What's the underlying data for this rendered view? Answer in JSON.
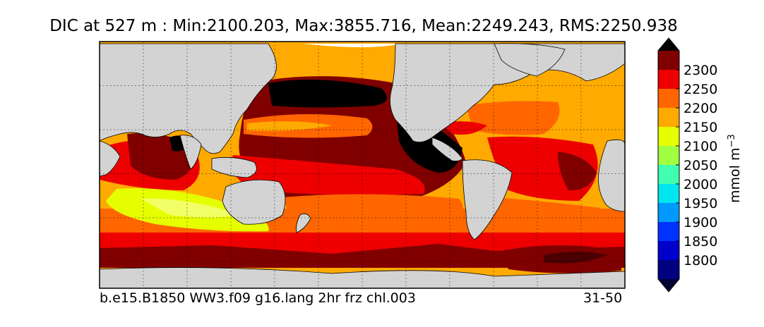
{
  "title": "DIC at 527 m : Min:2100.203, Max:3855.716, Mean:2249.243, RMS:2250.938",
  "footer": {
    "case_name": "b.e15.B1850 WW3.f09 g16.lang 2hr frz chl.003",
    "years": "31-50"
  },
  "colorbar": {
    "unit_prefix": "mmol m",
    "unit_exponent": "−3",
    "levels": [
      1800,
      1850,
      1900,
      1950,
      2000,
      2050,
      2100,
      2150,
      2200,
      2250,
      2300
    ],
    "colors": [
      "#000080",
      "#0000cd",
      "#0033ff",
      "#0099ff",
      "#00e5ee",
      "#40ffb0",
      "#a0ff40",
      "#e6ff00",
      "#ffaa00",
      "#ff6600",
      "#ee0000",
      "#800000"
    ],
    "under_color": "#000033",
    "over_color": "#000000"
  },
  "chart_data": {
    "type": "heatmap",
    "title": "DIC at 527 m : Min:2100.203, Max:3855.716, Mean:2249.243, RMS:2250.938",
    "variable": "DIC",
    "depth": "527 m",
    "statistics": {
      "min": 2100.203,
      "max": 3855.716,
      "mean": 2249.243,
      "rms": 2250.938
    },
    "units": "mmol m−3",
    "colorbar_ticks": [
      1800,
      1850,
      1900,
      1950,
      2000,
      2050,
      2100,
      2150,
      2200,
      2250,
      2300
    ],
    "land_color": "#d3d3d3",
    "gridlines": true,
    "gridline_lon": [
      60,
      90,
      120,
      150,
      180,
      210,
      240,
      270,
      300,
      330,
      360
    ],
    "gridline_lat": [
      -60,
      -30,
      0,
      30,
      60
    ],
    "lon_range": [
      30,
      390
    ],
    "lat_range": [
      -78,
      90
    ]
  }
}
